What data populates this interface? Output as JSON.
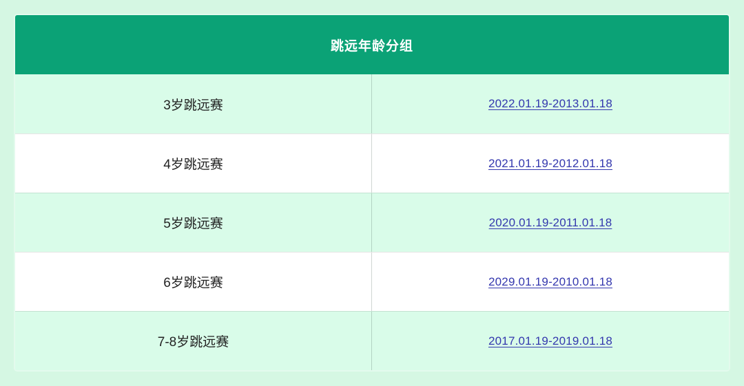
{
  "page": {
    "background": "#d5f7e3"
  },
  "table": {
    "title": "跳远年龄分组",
    "rows": [
      {
        "group": "3岁跳远赛",
        "date_range": "2022.01.19-2013.01.18"
      },
      {
        "group": "4岁跳远赛",
        "date_range": "2021.01.19-2012.01.18"
      },
      {
        "group": "5岁跳远赛",
        "date_range": "2020.01.19-2011.01.18"
      },
      {
        "group": "6岁跳远赛",
        "date_range": "2029.01.19-2010.01.18"
      },
      {
        "group": "7-8岁跳远赛",
        "date_range": "2017.01.19-2019.01.18"
      }
    ],
    "colors": {
      "header_background": "#0ba276",
      "header_text": "#ffffff",
      "row_light_green": "#d9fce9",
      "row_white": "#ffffff",
      "link_blue": "#3337ae",
      "cell_text": "#222222"
    }
  }
}
